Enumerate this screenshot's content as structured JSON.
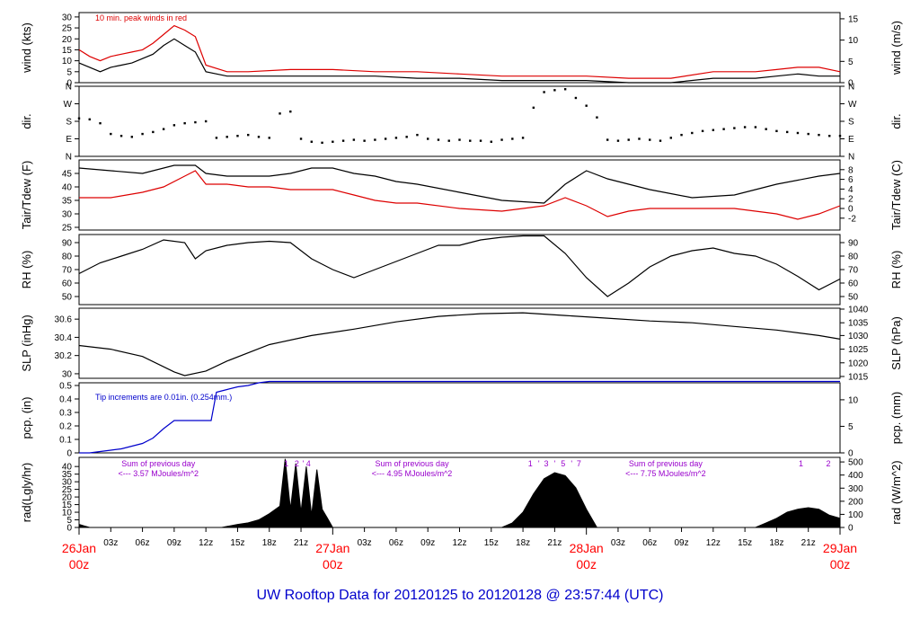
{
  "title": "UW Rooftop Data for 20120125  to  20120128 @ 23:57:44  (UTC)",
  "colors": {
    "black": "#000000",
    "red": "#dd0000",
    "blue": "#0000cc",
    "purple": "#9900cc",
    "date": "#ff0000"
  },
  "x_axis": {
    "hours_total": 72,
    "ticks": [
      {
        "h": 3,
        "label": "03z"
      },
      {
        "h": 6,
        "label": "06z"
      },
      {
        "h": 9,
        "label": "09z"
      },
      {
        "h": 12,
        "label": "12z"
      },
      {
        "h": 15,
        "label": "15z"
      },
      {
        "h": 18,
        "label": "18z"
      },
      {
        "h": 21,
        "label": "21z"
      },
      {
        "h": 27,
        "label": "03z"
      },
      {
        "h": 30,
        "label": "06z"
      },
      {
        "h": 33,
        "label": "09z"
      },
      {
        "h": 36,
        "label": "12z"
      },
      {
        "h": 39,
        "label": "15z"
      },
      {
        "h": 42,
        "label": "18z"
      },
      {
        "h": 45,
        "label": "21z"
      },
      {
        "h": 51,
        "label": "03z"
      },
      {
        "h": 54,
        "label": "06z"
      },
      {
        "h": 57,
        "label": "09z"
      },
      {
        "h": 60,
        "label": "12z"
      },
      {
        "h": 63,
        "label": "15z"
      },
      {
        "h": 66,
        "label": "18z"
      },
      {
        "h": 69,
        "label": "21z"
      }
    ],
    "date_ticks": [
      {
        "h": 0,
        "date": "26Jan",
        "time": "00z"
      },
      {
        "h": 24,
        "date": "27Jan",
        "time": "00z"
      },
      {
        "h": 48,
        "date": "28Jan",
        "time": "00z"
      },
      {
        "h": 72,
        "date": "29Jan",
        "time": "00z"
      }
    ]
  },
  "chart_data": [
    {
      "id": "wind",
      "type": "line",
      "ylabel_left": "wind (kts)",
      "ylabel_right": "wind (m/s)",
      "ylim": [
        0,
        32
      ],
      "left_ticks": [
        0,
        5,
        10,
        15,
        20,
        25,
        30
      ],
      "right_ticks": [
        {
          "v": 0,
          "label": "0"
        },
        {
          "v": 9.72,
          "label": "5"
        },
        {
          "v": 19.44,
          "label": "10"
        },
        {
          "v": 29.16,
          "label": "15"
        }
      ],
      "annotation": "10 min. peak winds in red",
      "series": [
        {
          "color": "red",
          "x": [
            0,
            1,
            2,
            3,
            4,
            5,
            6,
            7,
            8,
            9,
            10,
            11,
            12,
            14,
            16,
            20,
            24,
            28,
            32,
            36,
            40,
            44,
            48,
            52,
            56,
            60,
            64,
            66,
            68,
            70,
            72
          ],
          "y": [
            15,
            12,
            10,
            12,
            13,
            14,
            15,
            18,
            22,
            26,
            24,
            21,
            8,
            5,
            5,
            6,
            6,
            5,
            5,
            4,
            3,
            3,
            3,
            2,
            2,
            5,
            5,
            6,
            7,
            7,
            5
          ]
        },
        {
          "color": "black",
          "x": [
            0,
            1,
            2,
            3,
            4,
            5,
            6,
            7,
            8,
            9,
            10,
            11,
            12,
            14,
            16,
            20,
            24,
            28,
            32,
            36,
            40,
            44,
            48,
            52,
            56,
            60,
            64,
            66,
            68,
            70,
            72
          ],
          "y": [
            9,
            7,
            5,
            7,
            8,
            9,
            11,
            13,
            17,
            20,
            17,
            14,
            5,
            3,
            3,
            3,
            3,
            3,
            2,
            2,
            1,
            1,
            1,
            0,
            0,
            2,
            2,
            3,
            4,
            3,
            3
          ]
        }
      ]
    },
    {
      "id": "dir",
      "type": "scatter",
      "ylabel_left": "dir.",
      "ylabel_right": "dir.",
      "ylim": [
        0,
        360
      ],
      "left_ticks": [
        {
          "v": 0,
          "label": "N"
        },
        {
          "v": 90,
          "label": "E"
        },
        {
          "v": 180,
          "label": "S"
        },
        {
          "v": 270,
          "label": "W"
        },
        {
          "v": 360,
          "label": "N"
        }
      ],
      "right_ticks": [
        {
          "v": 0,
          "label": "N"
        },
        {
          "v": 90,
          "label": "E"
        },
        {
          "v": 180,
          "label": "S"
        },
        {
          "v": 270,
          "label": "W"
        },
        {
          "v": 360,
          "label": "N"
        }
      ],
      "x": [
        0,
        1,
        2,
        3,
        4,
        5,
        6,
        7,
        8,
        9,
        10,
        11,
        12,
        13,
        14,
        15,
        16,
        17,
        18,
        19,
        20,
        21,
        22,
        23,
        24,
        25,
        26,
        27,
        28,
        29,
        30,
        31,
        32,
        33,
        34,
        35,
        36,
        37,
        38,
        39,
        40,
        41,
        42,
        43,
        44,
        45,
        46,
        47,
        48,
        49,
        50,
        51,
        52,
        53,
        54,
        55,
        56,
        57,
        58,
        59,
        60,
        61,
        62,
        63,
        64,
        65,
        66,
        67,
        68,
        69,
        70,
        71,
        72
      ],
      "y": [
        195,
        190,
        170,
        115,
        105,
        100,
        115,
        125,
        140,
        160,
        170,
        175,
        180,
        95,
        100,
        105,
        110,
        100,
        95,
        220,
        230,
        90,
        75,
        70,
        75,
        80,
        85,
        80,
        85,
        90,
        95,
        100,
        110,
        90,
        85,
        80,
        85,
        80,
        80,
        75,
        85,
        90,
        95,
        250,
        330,
        340,
        345,
        300,
        260,
        200,
        85,
        80,
        85,
        90,
        85,
        80,
        95,
        110,
        120,
        130,
        135,
        140,
        145,
        150,
        150,
        140,
        130,
        125,
        120,
        115,
        110,
        105,
        105
      ]
    },
    {
      "id": "temp",
      "type": "line",
      "ylabel_left": "Tair/Tdew (F)",
      "ylabel_right": "Tair/Tdew (C)",
      "ylim": [
        24,
        50
      ],
      "left_ticks": [
        25,
        30,
        35,
        40,
        45
      ],
      "right_ticks": [
        {
          "v": 28.4,
          "label": "-2"
        },
        {
          "v": 32,
          "label": "0"
        },
        {
          "v": 35.6,
          "label": "2"
        },
        {
          "v": 39.2,
          "label": "4"
        },
        {
          "v": 42.8,
          "label": "6"
        },
        {
          "v": 46.4,
          "label": "8"
        }
      ],
      "series": [
        {
          "color": "black",
          "x": [
            0,
            3,
            6,
            9,
            11,
            12,
            14,
            16,
            18,
            20,
            22,
            24,
            26,
            28,
            30,
            32,
            36,
            40,
            44,
            46,
            48,
            50,
            54,
            58,
            62,
            66,
            70,
            72
          ],
          "y": [
            47,
            46,
            45,
            48,
            48,
            45,
            44,
            44,
            44,
            45,
            47,
            47,
            45,
            44,
            42,
            41,
            38,
            35,
            34,
            41,
            46,
            43,
            39,
            36,
            37,
            41,
            44,
            45
          ]
        },
        {
          "color": "red",
          "x": [
            0,
            3,
            6,
            8,
            10,
            11,
            12,
            14,
            16,
            18,
            20,
            22,
            24,
            26,
            28,
            30,
            32,
            36,
            40,
            44,
            46,
            48,
            50,
            52,
            54,
            58,
            62,
            66,
            68,
            70,
            72
          ],
          "y": [
            36,
            36,
            38,
            40,
            44,
            46,
            41,
            41,
            40,
            40,
            39,
            39,
            39,
            37,
            35,
            34,
            34,
            32,
            31,
            33,
            36,
            33,
            29,
            31,
            32,
            32,
            32,
            30,
            28,
            30,
            33
          ]
        }
      ]
    },
    {
      "id": "rh",
      "type": "line",
      "ylabel_left": "RH (%)",
      "ylabel_right": "RH (%)",
      "ylim": [
        44,
        96
      ],
      "left_ticks": [
        50,
        60,
        70,
        80,
        90
      ],
      "right_ticks": [
        {
          "v": 50,
          "label": "50"
        },
        {
          "v": 60,
          "label": "60"
        },
        {
          "v": 70,
          "label": "70"
        },
        {
          "v": 80,
          "label": "80"
        },
        {
          "v": 90,
          "label": "90"
        }
      ],
      "series": [
        {
          "color": "black",
          "x": [
            0,
            2,
            4,
            6,
            8,
            10,
            11,
            12,
            14,
            16,
            18,
            20,
            22,
            24,
            26,
            28,
            30,
            32,
            34,
            36,
            38,
            40,
            42,
            44,
            46,
            48,
            50,
            52,
            54,
            56,
            58,
            60,
            62,
            64,
            66,
            68,
            70,
            72
          ],
          "y": [
            67,
            75,
            80,
            85,
            92,
            90,
            78,
            84,
            88,
            90,
            91,
            90,
            78,
            70,
            64,
            70,
            76,
            82,
            88,
            88,
            92,
            94,
            95,
            95,
            82,
            64,
            50,
            60,
            72,
            80,
            84,
            86,
            82,
            80,
            74,
            65,
            55,
            63
          ]
        }
      ]
    },
    {
      "id": "slp",
      "type": "line",
      "ylabel_left": "SLP (inHg)",
      "ylabel_right": "SLP (hPa)",
      "ylim": [
        29.95,
        30.72
      ],
      "left_ticks": [
        30.0,
        30.2,
        30.4,
        30.6
      ],
      "right_ticks": [
        {
          "v": 29.97,
          "label": "1015"
        },
        {
          "v": 30.12,
          "label": "1020"
        },
        {
          "v": 30.27,
          "label": "1025"
        },
        {
          "v": 30.42,
          "label": "1030"
        },
        {
          "v": 30.56,
          "label": "1035"
        },
        {
          "v": 30.71,
          "label": "1040"
        }
      ],
      "series": [
        {
          "color": "black",
          "x": [
            0,
            3,
            6,
            9,
            10,
            12,
            14,
            18,
            22,
            26,
            30,
            34,
            38,
            42,
            46,
            50,
            54,
            58,
            62,
            66,
            70,
            72
          ],
          "y": [
            30.31,
            30.27,
            30.19,
            30.02,
            29.98,
            30.03,
            30.14,
            30.32,
            30.42,
            30.49,
            30.57,
            30.63,
            30.66,
            30.67,
            30.64,
            30.61,
            30.58,
            30.56,
            30.52,
            30.48,
            30.42,
            30.38
          ]
        }
      ]
    },
    {
      "id": "pcp",
      "type": "line",
      "ylabel_left": "pcp. (in)",
      "ylabel_right": "pcp. (mm)",
      "ylim": [
        0,
        0.52
      ],
      "left_ticks": [
        0,
        0.1,
        0.2,
        0.3,
        0.4,
        0.5
      ],
      "right_ticks": [
        {
          "v": 0,
          "label": "0"
        },
        {
          "v": 0.197,
          "label": "5"
        },
        {
          "v": 0.394,
          "label": "10"
        }
      ],
      "annotation": "Tip increments are 0.01in. (0.254mm.)",
      "series": [
        {
          "color": "blue",
          "x": [
            0,
            1,
            2,
            3,
            4,
            5,
            6,
            7,
            8,
            9,
            10,
            11,
            12,
            12.5,
            13,
            14,
            15,
            16,
            17,
            18,
            72
          ],
          "y": [
            0,
            0,
            0.01,
            0.02,
            0.03,
            0.05,
            0.07,
            0.11,
            0.18,
            0.24,
            0.24,
            0.24,
            0.24,
            0.24,
            0.45,
            0.47,
            0.49,
            0.5,
            0.52,
            0.53,
            0.53
          ]
        }
      ]
    },
    {
      "id": "rad",
      "type": "area",
      "ylabel_left": "rad(Lgly/hr)",
      "ylabel_right": "rad (W/m^2)",
      "ylim": [
        0,
        46
      ],
      "left_ticks": [
        0,
        5,
        10,
        15,
        20,
        25,
        30,
        35,
        40
      ],
      "right_ticks": [
        {
          "v": 0,
          "label": "0"
        },
        {
          "v": 8.6,
          "label": "100"
        },
        {
          "v": 17.2,
          "label": "200"
        },
        {
          "v": 25.8,
          "label": "300"
        },
        {
          "v": 34.4,
          "label": "400"
        },
        {
          "v": 43.0,
          "label": "500"
        }
      ],
      "series": [
        {
          "color": "black",
          "x": [
            0,
            0.5,
            1,
            13.5,
            15,
            16,
            17,
            18,
            19,
            19.5,
            20,
            20.5,
            21,
            21.5,
            22,
            22.5,
            23,
            23.5,
            24,
            40,
            41,
            42,
            43,
            44,
            45,
            46,
            47,
            48,
            49,
            64,
            65,
            66,
            67,
            68,
            69,
            70,
            71,
            72
          ],
          "y": [
            2,
            1,
            0,
            0,
            2,
            3,
            5,
            9,
            14,
            45,
            12,
            42,
            10,
            40,
            8,
            38,
            12,
            6,
            0,
            0,
            3,
            10,
            22,
            32,
            36,
            34,
            26,
            12,
            0,
            0,
            3,
            6,
            10,
            12,
            13,
            12,
            8,
            6
          ]
        }
      ],
      "day_sums": [
        {
          "h": 7.5,
          "label": "Sum of previous day",
          "value": "<---  3.57  MJoules/m^2"
        },
        {
          "h": 31.5,
          "label": "Sum of previous day",
          "value": "<---  4.95  MJoules/m^2"
        },
        {
          "h": 55.5,
          "label": "Sum of previous day",
          "value": "<---  7.75  MJoules/m^2"
        }
      ],
      "hour_marks": [
        {
          "h": 19.6,
          "label": "1"
        },
        {
          "h": 20.6,
          "label": "2"
        },
        {
          "h": 21.2,
          "label": "'"
        },
        {
          "h": 21.7,
          "label": "4"
        },
        {
          "h": 42.7,
          "label": "1"
        },
        {
          "h": 43.5,
          "label": "'"
        },
        {
          "h": 44.2,
          "label": "3"
        },
        {
          "h": 45.0,
          "label": "'"
        },
        {
          "h": 45.8,
          "label": "5"
        },
        {
          "h": 46.6,
          "label": "'"
        },
        {
          "h": 47.3,
          "label": "7"
        },
        {
          "h": 68.3,
          "label": "1"
        },
        {
          "h": 70.9,
          "label": "2"
        }
      ]
    }
  ]
}
